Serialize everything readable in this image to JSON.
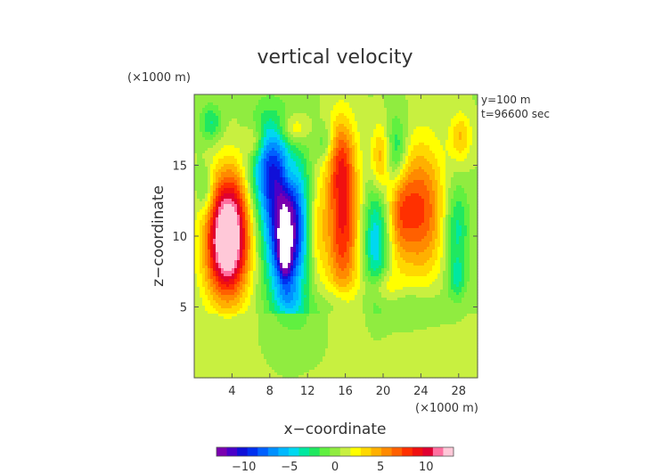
{
  "chart_data": {
    "type": "heatmap",
    "title": "vertical velocity",
    "xlabel": "x−coordinate",
    "ylabel": "z−coordinate",
    "x_unit": "(×1000 m)",
    "y_unit": "(×1000 m)",
    "annotations": [
      "y=100 m",
      "t=96600 sec"
    ],
    "xlim": [
      0,
      30
    ],
    "ylim": [
      0,
      20
    ],
    "x_ticks": [
      4,
      8,
      12,
      16,
      20,
      24,
      28
    ],
    "x_tick_labels": [
      "4",
      "8",
      "12",
      "16",
      "20",
      "24",
      "28"
    ],
    "y_ticks": [
      5,
      10,
      15
    ],
    "y_tick_labels": [
      "5",
      "10",
      "15"
    ],
    "colorbar": {
      "range": [
        -13,
        13
      ],
      "ticks": [
        -10,
        -5,
        0,
        5,
        10
      ],
      "tick_labels": [
        "−10",
        "−5",
        "0",
        "5",
        "10"
      ],
      "colors": [
        "#7a00b0",
        "#4a00c8",
        "#1010d8",
        "#0030f0",
        "#0060ff",
        "#0090ff",
        "#00b8ff",
        "#00d8f0",
        "#00e8a0",
        "#20e860",
        "#60f040",
        "#90ec40",
        "#c8f040",
        "#ffff00",
        "#ffd800",
        "#ffb000",
        "#ff8a00",
        "#ff6000",
        "#ff3000",
        "#f01010",
        "#e00030",
        "#ff70a0",
        "#ffc8d8"
      ]
    },
    "background_value": 0.5,
    "features": [
      {
        "kind": "downdraft",
        "x": 9.8,
        "z": 10.6,
        "amplitude": -11.5,
        "sx": 1.7,
        "sz": 3.6
      },
      {
        "kind": "downdraft core",
        "x": 9.7,
        "z": 9.8,
        "amplitude": -4.0,
        "sx": 0.8,
        "sz": 2.2
      },
      {
        "kind": "peak",
        "x": 9.6,
        "z": 9.6,
        "amplitude": -16.0,
        "sx": 0.35,
        "sz": 1.2
      },
      {
        "kind": "updraft",
        "x": 3.5,
        "z": 9.2,
        "amplitude": 13.5,
        "sx": 1.6,
        "sz": 2.6
      },
      {
        "kind": "updraft upper",
        "x": 3.8,
        "z": 12.6,
        "amplitude": 5.0,
        "sx": 1.5,
        "sz": 2.2
      },
      {
        "kind": "downdraft upper",
        "x": 7.8,
        "z": 15.0,
        "amplitude": -7.0,
        "sx": 1.4,
        "sz": 2.4
      },
      {
        "kind": "updraft",
        "x": 15.7,
        "z": 10.8,
        "amplitude": 8.0,
        "sx": 1.2,
        "sz": 4.0
      },
      {
        "kind": "updraft top",
        "x": 15.5,
        "z": 15.5,
        "amplitude": 4.0,
        "sx": 1.0,
        "sz": 2.0
      },
      {
        "kind": "updraft",
        "x": 13.0,
        "z": 10.5,
        "amplitude": 3.5,
        "sx": 0.8,
        "sz": 2.8
      },
      {
        "kind": "downdraft",
        "x": 19.2,
        "z": 9.6,
        "amplitude": -5.5,
        "sx": 0.9,
        "sz": 2.6
      },
      {
        "kind": "updraft",
        "x": 24.0,
        "z": 11.8,
        "amplitude": 7.0,
        "sx": 1.7,
        "sz": 3.2
      },
      {
        "kind": "updraft",
        "x": 21.8,
        "z": 12.0,
        "amplitude": 4.0,
        "sx": 0.9,
        "sz": 2.6
      },
      {
        "kind": "updraft",
        "x": 19.7,
        "z": 15.5,
        "amplitude": 4.0,
        "sx": 0.7,
        "sz": 1.6
      },
      {
        "kind": "downdraft",
        "x": 21.5,
        "z": 15.8,
        "amplitude": -4.5,
        "sx": 0.8,
        "sz": 1.8
      },
      {
        "kind": "downdraft",
        "x": 27.8,
        "z": 10.5,
        "amplitude": -4.0,
        "sx": 0.9,
        "sz": 2.2
      },
      {
        "kind": "downdraft",
        "x": 27.8,
        "z": 7.0,
        "amplitude": -3.0,
        "sx": 0.7,
        "sz": 1.0
      },
      {
        "kind": "updraft",
        "x": 28.2,
        "z": 17.0,
        "amplitude": 3.5,
        "sx": 0.8,
        "sz": 1.2
      },
      {
        "kind": "downdraft",
        "x": 1.8,
        "z": 18.0,
        "amplitude": -3.5,
        "sx": 0.8,
        "sz": 0.9
      },
      {
        "kind": "downdraft",
        "x": 1.2,
        "z": 13.2,
        "amplitude": -3.0,
        "sx": 0.6,
        "sz": 1.2
      },
      {
        "kind": "updraft",
        "x": 10.5,
        "z": 17.5,
        "amplitude": 3.5,
        "sx": 1.0,
        "sz": 0.8
      },
      {
        "kind": "updraft",
        "x": 10.0,
        "z": 14.2,
        "amplitude": 2.5,
        "sx": 0.6,
        "sz": 1.2
      },
      {
        "kind": "updraft",
        "x": 6.4,
        "z": 16.6,
        "amplitude": 3.5,
        "sx": 0.8,
        "sz": 0.9
      },
      {
        "kind": "downdraft",
        "x": 13.9,
        "z": 16.6,
        "amplitude": -2.5,
        "sx": 0.7,
        "sz": 0.9
      },
      {
        "kind": "downdraft",
        "x": 12.2,
        "z": 4.0,
        "amplitude": -1.5,
        "sx": 2.0,
        "sz": 1.5
      },
      {
        "kind": "updraft",
        "x": 20.0,
        "z": 6.4,
        "amplitude": 2.5,
        "sx": 1.2,
        "sz": 0.8
      },
      {
        "kind": "downdraft",
        "x": 15.5,
        "z": 5.4,
        "amplitude": -2.0,
        "sx": 1.0,
        "sz": 0.8
      },
      {
        "kind": "downdraft",
        "x": 23.0,
        "z": 5.0,
        "amplitude": -1.5,
        "sx": 2.5,
        "sz": 1.0
      },
      {
        "kind": "downdraft",
        "x": 10.0,
        "z": 5.5,
        "amplitude": -2.0,
        "sx": 1.0,
        "sz": 0.7
      }
    ]
  }
}
